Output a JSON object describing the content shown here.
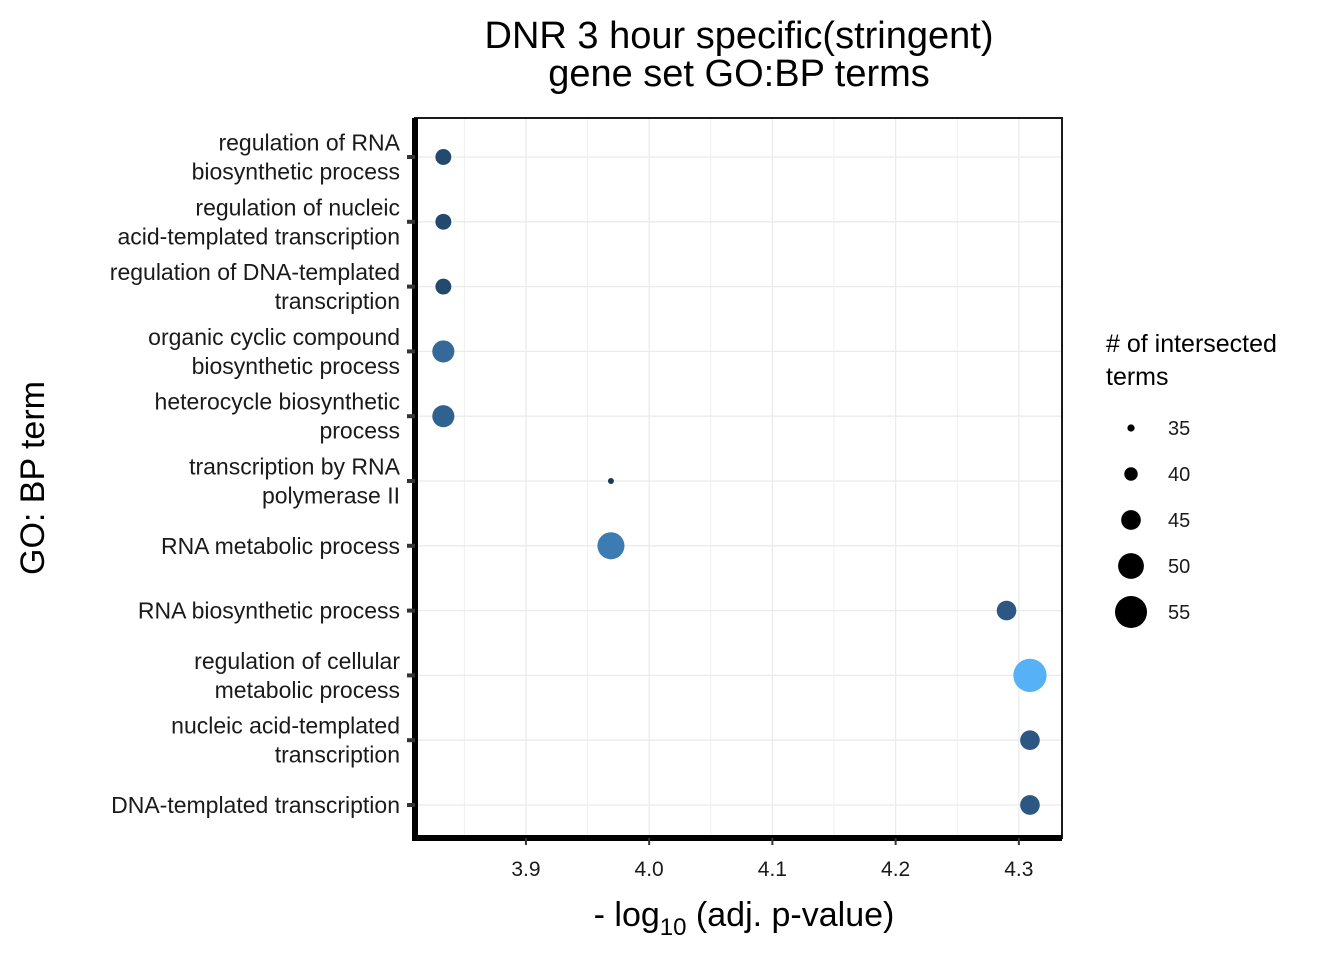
{
  "chart_data": {
    "type": "scatter",
    "title_lines": [
      "DNR 3 hour specific(stringent)",
      "gene set GO:BP terms"
    ],
    "xlabel_prefix": "- log",
    "xlabel_sub": "10",
    "xlabel_suffix": " (adj. p-value)",
    "ylabel": "GO: BP term",
    "xlim": [
      3.81,
      4.335
    ],
    "x_ticks": [
      3.9,
      4.0,
      4.1,
      4.2,
      4.3
    ],
    "x_tick_labels": [
      "3.9",
      "4.0",
      "4.1",
      "4.2",
      "4.3"
    ],
    "grid": true,
    "legend_position": "right",
    "legend": {
      "title_lines": [
        "# of intersected",
        " terms"
      ],
      "sizes": [
        35,
        40,
        45,
        50,
        55
      ],
      "labels": [
        "35",
        "40",
        "45",
        "50",
        "55"
      ]
    },
    "color_low": "#132B43",
    "color_high": "#56B1F7",
    "points": [
      {
        "term_lines": [
          "regulation of RNA",
          "biosynthetic process"
        ],
        "x": 3.833,
        "size": 42,
        "color": "#234a6e"
      },
      {
        "term_lines": [
          "regulation of nucleic",
          "acid-templated transcription"
        ],
        "x": 3.833,
        "size": 42,
        "color": "#234a6e"
      },
      {
        "term_lines": [
          "regulation of DNA-templated",
          "transcription"
        ],
        "x": 3.833,
        "size": 42,
        "color": "#234a6e"
      },
      {
        "term_lines": [
          "organic cyclic compound",
          "biosynthetic process"
        ],
        "x": 3.833,
        "size": 47,
        "color": "#34699a"
      },
      {
        "term_lines": [
          "heterocycle biosynthetic",
          "process"
        ],
        "x": 3.833,
        "size": 47,
        "color": "#30628f"
      },
      {
        "term_lines": [
          "transcription by RNA",
          "polymerase II"
        ],
        "x": 3.969,
        "size": 34,
        "color": "#1a3a58"
      },
      {
        "term_lines": [
          "RNA metabolic process"
        ],
        "x": 3.969,
        "size": 51,
        "color": "#3d7bb3"
      },
      {
        "term_lines": [
          "RNA biosynthetic process"
        ],
        "x": 4.29,
        "size": 45,
        "color": "#2c5782"
      },
      {
        "term_lines": [
          "regulation of cellular",
          "metabolic process"
        ],
        "x": 4.309,
        "size": 56,
        "color": "#56b1f7"
      },
      {
        "term_lines": [
          "nucleic acid-templated",
          "transcription"
        ],
        "x": 4.309,
        "size": 45,
        "color": "#2c5782"
      },
      {
        "term_lines": [
          "DNA-templated transcription"
        ],
        "x": 4.309,
        "size": 45,
        "color": "#2c5782"
      }
    ]
  }
}
